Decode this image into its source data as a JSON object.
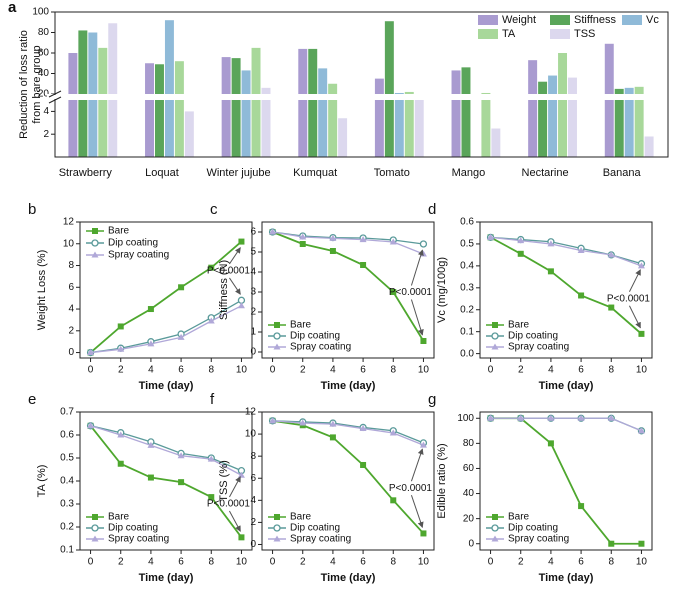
{
  "chart_data": [
    {
      "type": "bar",
      "panel": "a",
      "ylabel": "Reduction of loss ratio from bare group",
      "categories": [
        "Strawberry",
        "Loquat",
        "Winter jujube",
        "Kumquat",
        "Tomato",
        "Mango",
        "Nectarine",
        "Banana"
      ],
      "series": [
        {
          "name": "Weight",
          "color": "#a99bd0",
          "values": [
            60,
            50,
            56,
            64,
            35,
            43,
            53,
            69
          ]
        },
        {
          "name": "Stiffness",
          "color": "#5aa55a",
          "values": [
            82,
            49,
            55,
            64,
            91,
            46,
            32,
            25
          ]
        },
        {
          "name": "Vc",
          "color": "#8fbad8",
          "values": [
            80,
            92,
            43,
            45,
            21,
            null,
            38,
            26
          ]
        },
        {
          "name": "TA",
          "color": "#a8d89a",
          "values": [
            65,
            52,
            65,
            30,
            22,
            21,
            60,
            27
          ]
        },
        {
          "name": "TSS",
          "color": "#dcd8ee",
          "values": [
            89,
            4,
            26,
            3.4,
            20,
            2.5,
            36,
            1.8
          ]
        }
      ],
      "ylim": [
        0,
        100
      ],
      "y_break": [
        5,
        20
      ],
      "yticks": [
        2,
        4,
        20,
        40,
        60,
        80,
        100
      ],
      "legend": "upper right"
    },
    {
      "type": "line",
      "panel": "b",
      "ylabel": "Weight Loss (%)",
      "xlabel": "Time (day)",
      "annotation": "P<0.0001",
      "x": [
        0,
        2,
        4,
        6,
        8,
        10
      ],
      "xlim": [
        -0.7,
        10.7
      ],
      "xticks": [
        0,
        2,
        4,
        6,
        8,
        10
      ],
      "ylim": [
        -0.5,
        12
      ],
      "yticks": [
        0,
        2,
        4,
        6,
        8,
        10,
        12
      ],
      "legend": "upper left",
      "series": [
        {
          "name": "Bare",
          "color": "#4ea72e",
          "values": [
            0,
            2.4,
            4.0,
            6.0,
            7.8,
            10.2
          ]
        },
        {
          "name": "Dip coating",
          "color": "#5a9a9a",
          "values": [
            0,
            0.4,
            1.0,
            1.7,
            3.2,
            4.8
          ]
        },
        {
          "name": "Spray coating",
          "color": "#b0a8d8",
          "values": [
            0,
            0.3,
            0.8,
            1.4,
            2.9,
            4.3
          ]
        }
      ]
    },
    {
      "type": "line",
      "panel": "c",
      "ylabel": "Stiffness (N)",
      "xlabel": "Time (day)",
      "annotation": "P<0.0001",
      "x": [
        0,
        2,
        4,
        6,
        8,
        10
      ],
      "xlim": [
        -0.7,
        10.7
      ],
      "xticks": [
        0,
        2,
        4,
        6,
        8,
        10
      ],
      "ylim": [
        -0.3,
        6.5
      ],
      "yticks": [
        0,
        1,
        2,
        3,
        4,
        5,
        6
      ],
      "legend": "lower left",
      "series": [
        {
          "name": "Bare",
          "color": "#4ea72e",
          "values": [
            6,
            5.4,
            5.05,
            4.35,
            3.0,
            0.55
          ]
        },
        {
          "name": "Dip coating",
          "color": "#5a9a9a",
          "values": [
            6,
            5.8,
            5.72,
            5.7,
            5.6,
            5.4
          ]
        },
        {
          "name": "Spray coating",
          "color": "#b0a8d8",
          "values": [
            6,
            5.75,
            5.68,
            5.62,
            5.5,
            4.9
          ]
        }
      ]
    },
    {
      "type": "line",
      "panel": "d",
      "ylabel": "Vc (mg/100g)",
      "xlabel": "Time (day)",
      "annotation": "P<0.0001",
      "x": [
        0,
        2,
        4,
        6,
        8,
        10
      ],
      "xlim": [
        -0.7,
        10.7
      ],
      "xticks": [
        0,
        2,
        4,
        6,
        8,
        10
      ],
      "ylim": [
        -0.02,
        0.6
      ],
      "yticks": [
        {
          "value": 0,
          "label": "0.0"
        },
        0.1,
        0.2,
        0.3,
        0.4,
        0.5,
        0.6
      ],
      "legend": "lower left",
      "series": [
        {
          "name": "Bare",
          "color": "#4ea72e",
          "values": [
            0.53,
            0.455,
            0.375,
            0.265,
            0.21,
            0.09
          ]
        },
        {
          "name": "Dip coating",
          "color": "#5a9a9a",
          "values": [
            0.53,
            0.52,
            0.51,
            0.48,
            0.45,
            0.41
          ]
        },
        {
          "name": "Spray coating",
          "color": "#b0a8d8",
          "values": [
            0.53,
            0.515,
            0.5,
            0.47,
            0.45,
            0.4
          ]
        }
      ]
    },
    {
      "type": "line",
      "panel": "e",
      "ylabel": "TA (%)",
      "xlabel": "Time (day)",
      "annotation": "P<0.0001",
      "x": [
        0,
        2,
        4,
        6,
        8,
        10
      ],
      "xlim": [
        -0.7,
        10.7
      ],
      "xticks": [
        0,
        2,
        4,
        6,
        8,
        10
      ],
      "ylim": [
        0.1,
        0.7
      ],
      "yticks": [
        0.1,
        0.2,
        0.3,
        0.4,
        0.5,
        0.6,
        0.7
      ],
      "legend": "lower left",
      "series": [
        {
          "name": "Bare",
          "color": "#4ea72e",
          "values": [
            0.64,
            0.475,
            0.415,
            0.395,
            0.33,
            0.155
          ]
        },
        {
          "name": "Dip coating",
          "color": "#5a9a9a",
          "values": [
            0.64,
            0.61,
            0.57,
            0.52,
            0.5,
            0.445
          ]
        },
        {
          "name": "Spray coating",
          "color": "#b0a8d8",
          "values": [
            0.64,
            0.6,
            0.555,
            0.51,
            0.495,
            0.425
          ]
        }
      ]
    },
    {
      "type": "line",
      "panel": "f",
      "ylabel": "TSS (%)",
      "xlabel": "Time (day)",
      "annotation": "P<0.0001",
      "x": [
        0,
        2,
        4,
        6,
        8,
        10
      ],
      "xlim": [
        -0.7,
        10.7
      ],
      "xticks": [
        0,
        2,
        4,
        6,
        8,
        10
      ],
      "ylim": [
        -0.5,
        12
      ],
      "yticks": [
        0,
        2,
        4,
        6,
        8,
        10,
        12
      ],
      "legend": "lower left",
      "series": [
        {
          "name": "Bare",
          "color": "#4ea72e",
          "values": [
            11.2,
            10.8,
            9.7,
            7.2,
            4.0,
            1.0
          ]
        },
        {
          "name": "Dip coating",
          "color": "#5a9a9a",
          "values": [
            11.2,
            11.1,
            11.0,
            10.6,
            10.3,
            9.2
          ]
        },
        {
          "name": "Spray coating",
          "color": "#b0a8d8",
          "values": [
            11.2,
            11.0,
            10.9,
            10.5,
            10.1,
            9.0
          ]
        }
      ]
    },
    {
      "type": "line",
      "panel": "g",
      "ylabel": "Edible ratio (%)",
      "xlabel": "Time (day)",
      "x": [
        0,
        2,
        4,
        6,
        8,
        10
      ],
      "xlim": [
        -0.7,
        10.7
      ],
      "xticks": [
        0,
        2,
        4,
        6,
        8,
        10
      ],
      "ylim": [
        -5,
        105
      ],
      "yticks": [
        0,
        20,
        40,
        60,
        80,
        100
      ],
      "legend": "lower left",
      "series": [
        {
          "name": "Bare",
          "color": "#4ea72e",
          "values": [
            100,
            100,
            80,
            30,
            0,
            0
          ]
        },
        {
          "name": "Dip coating",
          "color": "#5a9a9a",
          "values": [
            100,
            100,
            100,
            100,
            100,
            90
          ]
        },
        {
          "name": "Spray coating",
          "color": "#b0a8d8",
          "values": [
            100,
            100,
            100,
            100,
            100,
            90
          ]
        }
      ]
    }
  ]
}
